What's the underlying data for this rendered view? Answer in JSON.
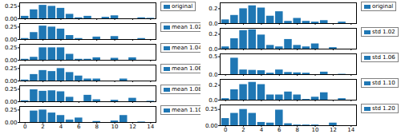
{
  "chart_data": [
    {
      "type": "bar",
      "x": [
        0,
        1,
        2,
        3,
        4,
        5,
        6,
        7,
        8,
        9,
        10,
        11,
        12,
        13,
        14
      ],
      "series": [
        {
          "name": "original",
          "color": "#1f77b4",
          "values": [
            0.05,
            0.18,
            0.27,
            0.25,
            0.21,
            0.09,
            0.02,
            0.05,
            0.0,
            0.03,
            0.06,
            0.0,
            0.0,
            0.02,
            0.01
          ]
        }
      ],
      "legend": "upper right",
      "xlim": [
        -0.6,
        14.6
      ],
      "xticks": [
        0,
        2,
        4,
        6,
        8,
        10,
        12,
        14
      ],
      "ylim": [
        0.0,
        0.32
      ],
      "yticks": [
        {
          "value": 0.0,
          "label": "0.00"
        },
        {
          "value": 0.25,
          "label": "0.25"
        }
      ],
      "tick_labels": "y"
    },
    {
      "type": "bar",
      "x": [
        0,
        1,
        2,
        3,
        4,
        5,
        6,
        7,
        8,
        9,
        10,
        11,
        12,
        13,
        14
      ],
      "series": [
        {
          "name": "mean 1.02",
          "color": "#1f77b4",
          "values": [
            0.02,
            0.14,
            0.27,
            0.25,
            0.21,
            0.08,
            0.02,
            0.0,
            0.05,
            0.0,
            0.06,
            0.0,
            0.0,
            0.02,
            0.0
          ]
        }
      ],
      "legend": "upper right",
      "xlim": [
        -0.6,
        14.6
      ],
      "xticks": [
        0,
        2,
        4,
        6,
        8,
        10,
        12,
        14
      ],
      "ylim": [
        0.0,
        0.32
      ],
      "yticks": [
        {
          "value": 0.0,
          "label": "0.00"
        },
        {
          "value": 0.25,
          "label": "0.25"
        }
      ],
      "tick_labels": "y"
    },
    {
      "type": "bar",
      "x": [
        0,
        1,
        2,
        3,
        4,
        5,
        6,
        7,
        8,
        9,
        10,
        11,
        12,
        13,
        14
      ],
      "series": [
        {
          "name": "mean 1.04",
          "color": "#1f77b4",
          "values": [
            0.02,
            0.06,
            0.25,
            0.25,
            0.25,
            0.12,
            0.02,
            0.02,
            0.05,
            0.0,
            0.04,
            0.0,
            0.05,
            0.0,
            0.0
          ]
        }
      ],
      "legend": "upper right",
      "xlim": [
        -0.6,
        14.6
      ],
      "xticks": [
        0,
        2,
        4,
        6,
        8,
        10,
        12,
        14
      ],
      "ylim": [
        0.0,
        0.32
      ],
      "yticks": [
        {
          "value": 0.0,
          "label": "0.00"
        },
        {
          "value": 0.25,
          "label": "0.25"
        }
      ],
      "tick_labels": "y"
    },
    {
      "type": "bar",
      "x": [
        0,
        1,
        2,
        3,
        4,
        5,
        6,
        7,
        8,
        9,
        10,
        11,
        12,
        13,
        14
      ],
      "series": [
        {
          "name": "mean 1.06",
          "color": "#1f77b4",
          "values": [
            0.02,
            0.13,
            0.21,
            0.19,
            0.25,
            0.17,
            0.1,
            0.04,
            0.04,
            0.0,
            0.0,
            0.04,
            0.0,
            0.0,
            0.0
          ]
        }
      ],
      "legend": "upper right",
      "xlim": [
        -0.6,
        14.6
      ],
      "xticks": [
        0,
        2,
        4,
        6,
        8,
        10,
        12,
        14
      ],
      "ylim": [
        0.0,
        0.32
      ],
      "yticks": [
        {
          "value": 0.0,
          "label": "0.00"
        },
        {
          "value": 0.25,
          "label": "0.25"
        }
      ],
      "tick_labels": "y"
    },
    {
      "type": "bar",
      "x": [
        0,
        1,
        2,
        3,
        4,
        5,
        6,
        7,
        8,
        9,
        10,
        11,
        12,
        13,
        14
      ],
      "series": [
        {
          "name": "mean 1.08",
          "color": "#1f77b4",
          "values": [
            0.02,
            0.24,
            0.21,
            0.22,
            0.2,
            0.09,
            0.0,
            0.13,
            0.04,
            0.0,
            0.03,
            0.0,
            0.07,
            0.0,
            0.01
          ]
        }
      ],
      "legend": "upper right",
      "xlim": [
        -0.6,
        14.6
      ],
      "xticks": [
        0,
        2,
        4,
        6,
        8,
        10,
        12,
        14
      ],
      "ylim": [
        0.0,
        0.32
      ],
      "yticks": [
        {
          "value": 0.0,
          "label": "0.00"
        },
        {
          "value": 0.25,
          "label": "0.25"
        }
      ],
      "tick_labels": "y"
    },
    {
      "type": "bar",
      "x": [
        0,
        1,
        2,
        3,
        4,
        5,
        6,
        7,
        8,
        9,
        10,
        11,
        12,
        13,
        14
      ],
      "series": [
        {
          "name": "mean 1.10",
          "color": "#1f77b4",
          "values": [
            0.0,
            0.23,
            0.25,
            0.19,
            0.14,
            0.05,
            0.09,
            0.0,
            0.02,
            0.0,
            0.03,
            0.14,
            0.0,
            0.01,
            0.0
          ]
        }
      ],
      "legend": "upper right",
      "xlim": [
        -0.6,
        14.6
      ],
      "xticks": [
        0,
        2,
        4,
        6,
        8,
        10,
        12,
        14
      ],
      "ylim": [
        0.0,
        0.32
      ],
      "yticks": [
        {
          "value": 0.0,
          "label": "0.00"
        },
        {
          "value": 0.25,
          "label": "0.25"
        }
      ]
    },
    {
      "type": "bar",
      "x": [
        0,
        1,
        2,
        3,
        4,
        5,
        6,
        7,
        8,
        9,
        10,
        11,
        12,
        13,
        14
      ],
      "series": [
        {
          "name": "original",
          "color": "#1f77b4",
          "values": [
            0.05,
            0.11,
            0.2,
            0.24,
            0.21,
            0.1,
            0.16,
            0.03,
            0.07,
            0.03,
            0.02,
            0.04,
            0.0,
            0.02,
            0.0
          ]
        }
      ],
      "legend": "upper right",
      "xlim": [
        -0.6,
        14.6
      ],
      "xticks": [
        0,
        2,
        4,
        6,
        8,
        10,
        12,
        14
      ],
      "ylim": [
        0.0,
        0.28
      ],
      "yticks": [
        {
          "value": 0.0,
          "label": "0.0"
        },
        {
          "value": 0.2,
          "label": "0.2"
        }
      ],
      "tick_labels": "y"
    },
    {
      "type": "bar",
      "x": [
        0,
        1,
        2,
        3,
        4,
        5,
        6,
        7,
        8,
        9,
        10,
        11,
        12,
        13,
        14
      ],
      "series": [
        {
          "name": "std 1.02",
          "color": "#1f77b4",
          "values": [
            0.03,
            0.14,
            0.25,
            0.26,
            0.19,
            0.05,
            0.03,
            0.13,
            0.05,
            0.03,
            0.07,
            0.0,
            0.02,
            0.0,
            0.0
          ]
        }
      ],
      "legend": "upper right",
      "xlim": [
        -0.6,
        14.6
      ],
      "xticks": [
        0,
        2,
        4,
        6,
        8,
        10,
        12,
        14
      ],
      "ylim": [
        0.0,
        0.28
      ],
      "yticks": [
        {
          "value": 0.0,
          "label": "0.0"
        },
        {
          "value": 0.2,
          "label": "0.2"
        }
      ],
      "tick_labels": "y"
    },
    {
      "type": "bar",
      "x": [
        0,
        1,
        2,
        3,
        4,
        5,
        6,
        7,
        8,
        9,
        10,
        11,
        12,
        13,
        14
      ],
      "series": [
        {
          "name": "std 1.06",
          "color": "#1f77b4",
          "values": [
            0.0,
            0.46,
            0.13,
            0.12,
            0.11,
            0.04,
            0.13,
            0.06,
            0.05,
            0.04,
            0.0,
            0.07,
            0.0,
            0.01,
            0.0
          ]
        }
      ],
      "legend": "upper right",
      "xlim": [
        -0.6,
        14.6
      ],
      "xticks": [
        0,
        2,
        4,
        6,
        8,
        10,
        12,
        14
      ],
      "ylim": [
        0.0,
        0.58
      ],
      "yticks": [
        {
          "value": 0.0,
          "label": "0.0"
        },
        {
          "value": 0.5,
          "label": "0.5"
        }
      ],
      "tick_labels": "y"
    },
    {
      "type": "bar",
      "x": [
        0,
        1,
        2,
        3,
        4,
        5,
        6,
        7,
        8,
        9,
        10,
        11,
        12,
        13,
        14
      ],
      "series": [
        {
          "name": "std 1.10",
          "color": "#1f77b4",
          "values": [
            0.02,
            0.14,
            0.21,
            0.24,
            0.21,
            0.07,
            0.07,
            0.11,
            0.07,
            0.01,
            0.04,
            0.1,
            0.0,
            0.02,
            0.0
          ]
        }
      ],
      "legend": "upper right",
      "xlim": [
        -0.6,
        14.6
      ],
      "xticks": [
        0,
        2,
        4,
        6,
        8,
        10,
        12,
        14
      ],
      "ylim": [
        0.0,
        0.28
      ],
      "yticks": [
        {
          "value": 0.0,
          "label": "0.0"
        },
        {
          "value": 0.2,
          "label": "0.2"
        }
      ],
      "tick_labels": "y"
    },
    {
      "type": "bar",
      "x": [
        0,
        1,
        2,
        3,
        4,
        5,
        6,
        7,
        8,
        9,
        10,
        11,
        12,
        13,
        14
      ],
      "series": [
        {
          "name": "std 1.20",
          "color": "#1f77b4",
          "values": [
            0.11,
            0.19,
            0.25,
            0.19,
            0.05,
            0.04,
            0.24,
            0.03,
            0.01,
            0.01,
            0.01,
            0.0,
            0.04,
            0.0,
            0.0
          ]
        }
      ],
      "legend": "upper right",
      "xlim": [
        -0.6,
        14.6
      ],
      "xticks": [
        0,
        2,
        4,
        6,
        8,
        10,
        12,
        14
      ],
      "ylim": [
        0.0,
        0.32
      ],
      "yticks": [
        {
          "value": 0.0,
          "label": "0.00"
        },
        {
          "value": 0.25,
          "label": "0.25"
        }
      ]
    }
  ]
}
